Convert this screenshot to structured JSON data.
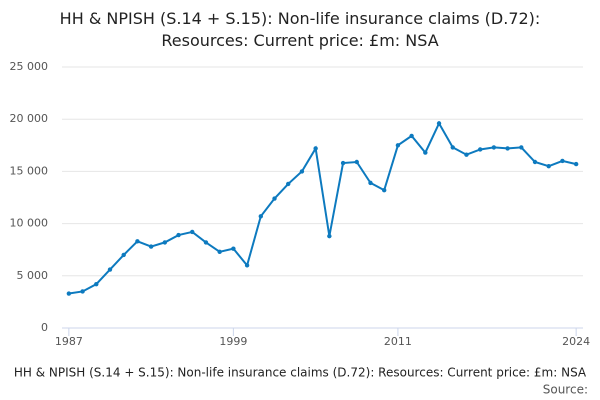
{
  "chart_data": {
    "type": "line",
    "title": "HH & NPISH (S.14 + S.15): Non-life insurance claims (D.72): Resources: Current price: £m: NSA",
    "source": "Source:",
    "x": [
      1987,
      1988,
      1989,
      1990,
      1991,
      1992,
      1993,
      1994,
      1995,
      1996,
      1997,
      1998,
      1999,
      2000,
      2001,
      2002,
      2003,
      2004,
      2005,
      2006,
      2007,
      2008,
      2009,
      2010,
      2011,
      2012,
      2013,
      2014,
      2015,
      2016,
      2017,
      2018,
      2019,
      2020,
      2021,
      2022,
      2023,
      2024
    ],
    "series": [
      {
        "color": "#0d7abf",
        "values": [
          3300,
          3500,
          4200,
          5600,
          7000,
          8300,
          7800,
          8200,
          8900,
          9200,
          8200,
          7300,
          7600,
          6000,
          10700,
          12400,
          13800,
          15000,
          17200,
          8800,
          15800,
          15900,
          13900,
          13200,
          17500,
          18400,
          16800,
          19600,
          17300,
          16600,
          17100,
          17300,
          17200,
          17300,
          15900,
          15500,
          16000,
          15700
        ]
      }
    ],
    "xlim": [
      1986.5,
      2024.5
    ],
    "xticks": [
      1987,
      1999,
      2011,
      2024
    ],
    "ylim": [
      0,
      25000
    ],
    "yticks": [
      0,
      {
        "value": 5000,
        "label": "5 000"
      },
      {
        "value": 10000,
        "label": "10 000"
      },
      {
        "value": 15000,
        "label": "15 000"
      },
      {
        "value": 20000,
        "label": "20 000"
      },
      {
        "value": 25000,
        "label": "25 000"
      }
    ],
    "grid": true
  }
}
